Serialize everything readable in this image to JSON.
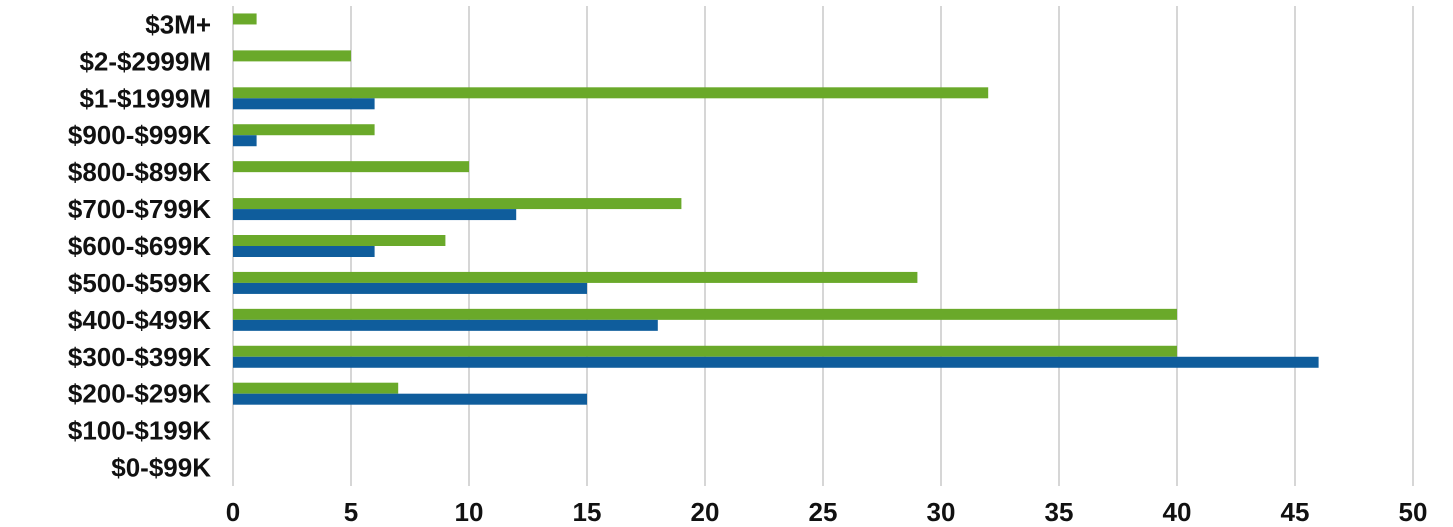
{
  "chart_data": {
    "type": "bar",
    "orientation": "horizontal",
    "title": "",
    "xlabel": "",
    "ylabel": "",
    "categories": [
      "$3M+",
      "$2-$2999M",
      "$1-$1999M",
      "$900-$999K",
      "$800-$899K",
      "$700-$799K",
      "$600-$699K",
      "$500-$599K",
      "$400-$499K",
      "$300-$399K",
      "$200-$299K",
      "$100-$199K",
      "$0-$99K"
    ],
    "series": [
      {
        "color": "#6aa92a",
        "values": [
          1,
          5,
          32,
          6,
          10,
          19,
          9,
          29,
          40,
          40,
          7,
          0,
          0
        ]
      },
      {
        "color": "#0f5d9c",
        "values": [
          0,
          0,
          6,
          1,
          0,
          12,
          6,
          15,
          18,
          46,
          15,
          0,
          0
        ]
      }
    ],
    "xlim": [
      0,
      50
    ],
    "xticks": [
      0,
      5,
      10,
      15,
      20,
      25,
      30,
      35,
      40,
      45,
      50
    ],
    "grid": "vertical",
    "legend": "none"
  }
}
